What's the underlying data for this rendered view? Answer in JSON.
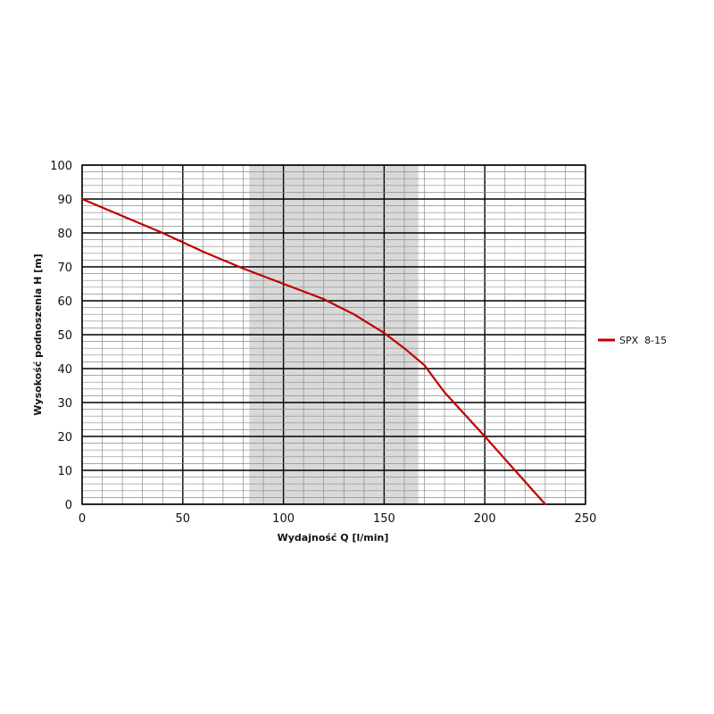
{
  "chart_data": {
    "type": "line",
    "xlabel": "Wydajność Q [l/min]",
    "ylabel": "Wysokość podnoszenia H [m]",
    "xlim": [
      0,
      250
    ],
    "ylim": [
      0,
      100
    ],
    "xticks": [
      0,
      50,
      100,
      150,
      200,
      250
    ],
    "yticks": [
      0,
      10,
      20,
      30,
      40,
      50,
      60,
      70,
      80,
      90,
      100
    ],
    "x_minor_step": 10,
    "y_minor_step": 2,
    "grid": true,
    "legend_position": "right",
    "highlight_band": {
      "x_from": 83,
      "x_to": 167,
      "color": "#d9d9d9"
    },
    "series": [
      {
        "name": "SPX  8-15",
        "color": "#c00000",
        "points": [
          {
            "x": 0,
            "y": 90
          },
          {
            "x": 20,
            "y": 85
          },
          {
            "x": 40,
            "y": 80
          },
          {
            "x": 60,
            "y": 74.5
          },
          {
            "x": 80,
            "y": 69.5
          },
          {
            "x": 100,
            "y": 65
          },
          {
            "x": 120,
            "y": 60.5
          },
          {
            "x": 135,
            "y": 56
          },
          {
            "x": 150,
            "y": 50.5
          },
          {
            "x": 160,
            "y": 46
          },
          {
            "x": 170,
            "y": 41
          },
          {
            "x": 180,
            "y": 33
          },
          {
            "x": 200,
            "y": 20
          },
          {
            "x": 215,
            "y": 10
          },
          {
            "x": 230,
            "y": 0
          }
        ]
      }
    ]
  }
}
